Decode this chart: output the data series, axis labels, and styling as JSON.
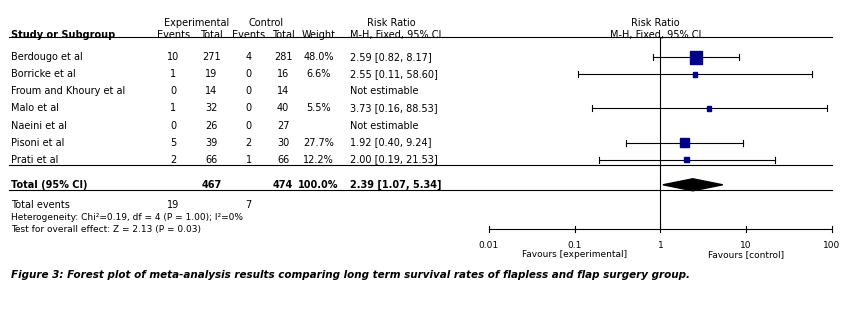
{
  "studies": [
    {
      "name": "Berdougo et al",
      "exp_events": 10,
      "exp_total": 271,
      "ctrl_events": 4,
      "ctrl_total": 281,
      "weight": "48.0%",
      "rr": "2.59 [0.82, 8.17]",
      "ln_rr": 0.9516,
      "ln_lo": -0.1985,
      "ln_hi": 2.1006,
      "estimable": true
    },
    {
      "name": "Borricke et al",
      "exp_events": 1,
      "exp_total": 19,
      "ctrl_events": 0,
      "ctrl_total": 16,
      "weight": "6.6%",
      "rr": "2.55 [0.11, 58.60]",
      "ln_rr": 0.9361,
      "ln_lo": -2.2073,
      "ln_hi": 4.0714,
      "estimable": true
    },
    {
      "name": "Froum and Khoury et al",
      "exp_events": 0,
      "exp_total": 14,
      "ctrl_events": 0,
      "ctrl_total": 14,
      "weight": "",
      "rr": "Not estimable",
      "ln_rr": null,
      "ln_lo": null,
      "ln_hi": null,
      "estimable": false
    },
    {
      "name": "Malo et al",
      "exp_events": 1,
      "exp_total": 32,
      "ctrl_events": 0,
      "ctrl_total": 40,
      "weight": "5.5%",
      "rr": "3.73 [0.16, 88.53]",
      "ln_rr": 1.3163,
      "ln_lo": -1.8326,
      "ln_hi": 4.4831,
      "estimable": true
    },
    {
      "name": "Naeini et al",
      "exp_events": 0,
      "exp_total": 26,
      "ctrl_events": 0,
      "ctrl_total": 27,
      "weight": "",
      "rr": "Not estimable",
      "ln_rr": null,
      "ln_lo": null,
      "ln_hi": null,
      "estimable": false
    },
    {
      "name": "Pisoni et al",
      "exp_events": 5,
      "exp_total": 39,
      "ctrl_events": 2,
      "ctrl_total": 30,
      "weight": "27.7%",
      "rr": "1.92 [0.40, 9.24]",
      "ln_rr": 0.6523,
      "ln_lo": -0.9163,
      "ln_hi": 2.2238,
      "estimable": true
    },
    {
      "name": "Prati et al",
      "exp_events": 2,
      "exp_total": 66,
      "ctrl_events": 1,
      "ctrl_total": 66,
      "weight": "12.2%",
      "rr": "2.00 [0.19, 21.53]",
      "ln_rr": 0.6931,
      "ln_lo": -1.6607,
      "ln_hi": 3.0694,
      "estimable": true
    }
  ],
  "total": {
    "exp_total": 467,
    "ctrl_total": 474,
    "weight": "100.0%",
    "rr": "2.39 [1.07, 5.34]",
    "ln_rr": 0.8713,
    "ln_lo": 0.0677,
    "ln_hi": 1.6749
  },
  "total_events_exp": 19,
  "total_events_ctrl": 7,
  "heterogeneity": "Heterogeneity: Chi²=0.19, df = 4 (P = 1.00); I²=0%",
  "overall_effect": "Test for overall effect: Z = 2.13 (P = 0.03)",
  "figure_caption": "Figure 3: Forest plot of meta-analysis results comparing long term survival rates of flapless and flap surgery group.",
  "box_color": "#00008B",
  "axis_ticks": [
    0.01,
    0.1,
    1,
    10,
    100
  ],
  "axis_labels": [
    "0.01",
    "0.1",
    "1",
    "10",
    "100"
  ],
  "favours_left": "Favours [experimental]",
  "favours_right": "Favours [control]"
}
